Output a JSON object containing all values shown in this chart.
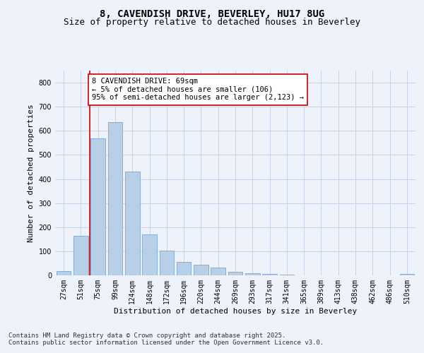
{
  "title_line1": "8, CAVENDISH DRIVE, BEVERLEY, HU17 8UG",
  "title_line2": "Size of property relative to detached houses in Beverley",
  "xlabel": "Distribution of detached houses by size in Beverley",
  "ylabel": "Number of detached properties",
  "background_color": "#eef2fa",
  "bar_color": "#b8cfe8",
  "bar_edge_color": "#6699cc",
  "grid_color": "#c8d4e8",
  "categories": [
    "27sqm",
    "51sqm",
    "75sqm",
    "99sqm",
    "124sqm",
    "148sqm",
    "172sqm",
    "196sqm",
    "220sqm",
    "244sqm",
    "269sqm",
    "293sqm",
    "317sqm",
    "341sqm",
    "365sqm",
    "389sqm",
    "413sqm",
    "438sqm",
    "462sqm",
    "486sqm",
    "510sqm"
  ],
  "values": [
    18,
    165,
    570,
    635,
    430,
    170,
    103,
    57,
    44,
    33,
    14,
    9,
    5,
    3,
    0,
    0,
    0,
    0,
    0,
    0,
    7
  ],
  "vline_x": 1.5,
  "vline_color": "#cc0000",
  "annotation_text": "8 CAVENDISH DRIVE: 69sqm\n← 5% of detached houses are smaller (106)\n95% of semi-detached houses are larger (2,123) →",
  "annotation_box_color": "#ffffff",
  "annotation_border_color": "#cc0000",
  "ylim": [
    0,
    850
  ],
  "yticks": [
    0,
    100,
    200,
    300,
    400,
    500,
    600,
    700,
    800
  ],
  "footnote": "Contains HM Land Registry data © Crown copyright and database right 2025.\nContains public sector information licensed under the Open Government Licence v3.0.",
  "title_fontsize": 10,
  "subtitle_fontsize": 9,
  "axis_label_fontsize": 8,
  "tick_fontsize": 7,
  "annotation_fontsize": 7.5,
  "footnote_fontsize": 6.5
}
